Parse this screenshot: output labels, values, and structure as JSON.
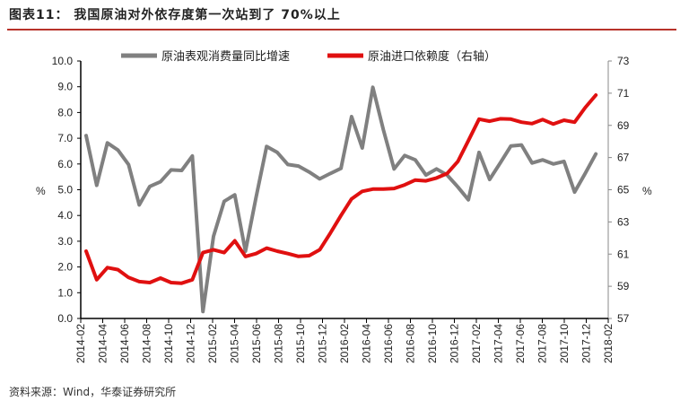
{
  "title": "图表11：   我国原油对外依存度第一次站到了 70%以上",
  "source": "资料来源：Wind，华泰证券研究所",
  "chart_data": {
    "type": "line",
    "left_axis": {
      "label": "%",
      "ylim": [
        0,
        10
      ],
      "ticks": [
        "0.0",
        "1.0",
        "2.0",
        "3.0",
        "4.0",
        "5.0",
        "6.0",
        "7.0",
        "8.0",
        "9.0",
        "10.0"
      ]
    },
    "right_axis": {
      "label": "%",
      "ylim": [
        57,
        73
      ],
      "ticks": [
        "57",
        "59",
        "61",
        "63",
        "65",
        "67",
        "69",
        "71",
        "73"
      ]
    },
    "x_tick_labels": [
      "2014-02",
      "2014-04",
      "2014-06",
      "2014-08",
      "2014-10",
      "2014-12",
      "2015-02",
      "2015-04",
      "2015-06",
      "2015-08",
      "2015-10",
      "2015-12",
      "2016-02",
      "2016-04",
      "2016-06",
      "2016-08",
      "2016-10",
      "2016-12",
      "2017-02",
      "2017-04",
      "2017-06",
      "2017-08",
      "2017-10",
      "2017-12",
      "2018-02"
    ],
    "legend_position": "top",
    "grid": false,
    "series": [
      {
        "name": "原油表观消费量同比增速",
        "axis": "left",
        "color": "#808080",
        "values": [
          7.1,
          5.17,
          6.82,
          6.54,
          5.98,
          4.41,
          5.13,
          5.31,
          5.77,
          5.75,
          6.31,
          0.27,
          3.19,
          4.55,
          4.8,
          2.61,
          4.7,
          6.68,
          6.45,
          5.98,
          5.92,
          5.69,
          5.42,
          5.63,
          5.83,
          7.84,
          6.62,
          8.98,
          7.32,
          5.81,
          6.33,
          6.16,
          5.57,
          5.81,
          5.57,
          5.11,
          4.61,
          6.45,
          5.4,
          6.04,
          6.7,
          6.74,
          6.04,
          6.16,
          6.0,
          6.1,
          4.91,
          5.63,
          6.39
        ]
      },
      {
        "name": "原油进口依赖度（右轴）",
        "axis": "right",
        "color": "#e01010",
        "values": [
          61.18,
          59.41,
          60.16,
          60.03,
          59.55,
          59.29,
          59.23,
          59.51,
          59.23,
          59.19,
          59.41,
          61.09,
          61.27,
          61.09,
          61.83,
          60.85,
          61.03,
          61.37,
          61.18,
          61.03,
          60.86,
          60.9,
          61.27,
          62.3,
          63.4,
          64.43,
          64.9,
          65.04,
          65.04,
          65.08,
          65.3,
          65.6,
          65.55,
          65.73,
          66.01,
          66.75,
          68.05,
          69.39,
          69.26,
          69.41,
          69.39,
          69.2,
          69.11,
          69.36,
          69.08,
          69.32,
          69.2,
          70.1,
          70.88
        ]
      }
    ]
  }
}
